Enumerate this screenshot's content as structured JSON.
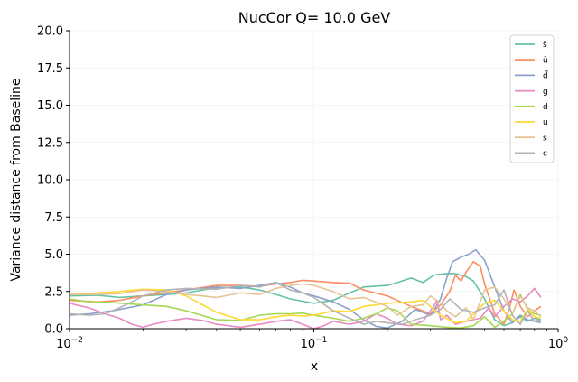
{
  "chart_data": {
    "type": "line",
    "title": "NucCor Q= 10.0 GeV",
    "xlabel": "x",
    "ylabel": "Variance distance from Baseline",
    "xscale": "log",
    "xlim": [
      0.01,
      1
    ],
    "ylim": [
      0,
      20
    ],
    "x_ticks": [
      {
        "value": 0.01,
        "base": "10",
        "exp": "−2"
      },
      {
        "value": 0.1,
        "base": "10",
        "exp": "−1"
      },
      {
        "value": 1,
        "base": "10",
        "exp": "0"
      }
    ],
    "y_ticks": [
      "0.0",
      "2.5",
      "5.0",
      "7.5",
      "10.0",
      "12.5",
      "15.0",
      "17.5",
      "20.0"
    ],
    "grid": true,
    "legend_position": "top-right",
    "series": [
      {
        "name": "s̄",
        "color": "#66c2a5",
        "points": [
          [
            0.01,
            2.2
          ],
          [
            0.013,
            2.25
          ],
          [
            0.016,
            2.1
          ],
          [
            0.02,
            2.2
          ],
          [
            0.025,
            2.3
          ],
          [
            0.03,
            2.4
          ],
          [
            0.035,
            2.6
          ],
          [
            0.04,
            2.75
          ],
          [
            0.05,
            2.8
          ],
          [
            0.06,
            2.6
          ],
          [
            0.07,
            2.3
          ],
          [
            0.08,
            2.0
          ],
          [
            0.1,
            1.7
          ],
          [
            0.12,
            1.9
          ],
          [
            0.14,
            2.4
          ],
          [
            0.16,
            2.8
          ],
          [
            0.2,
            2.9
          ],
          [
            0.22,
            3.1
          ],
          [
            0.25,
            3.4
          ],
          [
            0.28,
            3.1
          ],
          [
            0.31,
            3.6
          ],
          [
            0.35,
            3.7
          ],
          [
            0.38,
            3.7
          ],
          [
            0.42,
            3.5
          ],
          [
            0.45,
            3.2
          ],
          [
            0.5,
            2.0
          ],
          [
            0.55,
            0.6
          ],
          [
            0.6,
            0.2
          ],
          [
            0.65,
            0.4
          ],
          [
            0.7,
            0.8
          ],
          [
            0.75,
            0.5
          ],
          [
            0.8,
            0.7
          ],
          [
            0.85,
            0.6
          ]
        ]
      },
      {
        "name": "ū",
        "color": "#fc8d62",
        "points": [
          [
            0.01,
            1.9
          ],
          [
            0.013,
            1.8
          ],
          [
            0.016,
            1.9
          ],
          [
            0.02,
            2.2
          ],
          [
            0.03,
            2.6
          ],
          [
            0.04,
            2.9
          ],
          [
            0.05,
            2.9
          ],
          [
            0.06,
            2.85
          ],
          [
            0.07,
            3.0
          ],
          [
            0.08,
            3.1
          ],
          [
            0.09,
            3.25
          ],
          [
            0.1,
            3.2
          ],
          [
            0.12,
            3.1
          ],
          [
            0.14,
            3.05
          ],
          [
            0.16,
            2.6
          ],
          [
            0.2,
            2.2
          ],
          [
            0.25,
            1.5
          ],
          [
            0.3,
            1.0
          ],
          [
            0.33,
            1.6
          ],
          [
            0.36,
            2.5
          ],
          [
            0.38,
            3.6
          ],
          [
            0.4,
            3.2
          ],
          [
            0.42,
            3.8
          ],
          [
            0.45,
            4.5
          ],
          [
            0.48,
            4.2
          ],
          [
            0.5,
            3.0
          ],
          [
            0.55,
            1.0
          ],
          [
            0.6,
            0.3
          ],
          [
            0.63,
            1.3
          ],
          [
            0.66,
            2.6
          ],
          [
            0.7,
            1.5
          ],
          [
            0.75,
            0.8
          ],
          [
            0.8,
            1.2
          ],
          [
            0.85,
            1.5
          ]
        ]
      },
      {
        "name": "d̄",
        "color": "#8da0cb",
        "points": [
          [
            0.01,
            0.9
          ],
          [
            0.012,
            1.0
          ],
          [
            0.015,
            1.2
          ],
          [
            0.02,
            1.6
          ],
          [
            0.025,
            2.3
          ],
          [
            0.03,
            2.6
          ],
          [
            0.04,
            2.8
          ],
          [
            0.05,
            2.7
          ],
          [
            0.06,
            2.9
          ],
          [
            0.07,
            3.1
          ],
          [
            0.08,
            2.8
          ],
          [
            0.09,
            2.4
          ],
          [
            0.1,
            2.2
          ],
          [
            0.12,
            1.8
          ],
          [
            0.14,
            1.3
          ],
          [
            0.16,
            0.6
          ],
          [
            0.18,
            0.15
          ],
          [
            0.2,
            0.05
          ],
          [
            0.23,
            0.5
          ],
          [
            0.26,
            1.3
          ],
          [
            0.3,
            0.9
          ],
          [
            0.33,
            2.0
          ],
          [
            0.35,
            3.4
          ],
          [
            0.37,
            4.5
          ],
          [
            0.4,
            4.8
          ],
          [
            0.43,
            5.0
          ],
          [
            0.46,
            5.3
          ],
          [
            0.5,
            4.6
          ],
          [
            0.55,
            2.8
          ],
          [
            0.6,
            1.2
          ],
          [
            0.65,
            0.4
          ],
          [
            0.7,
            0.9
          ],
          [
            0.75,
            0.6
          ],
          [
            0.8,
            0.5
          ],
          [
            0.85,
            0.4
          ]
        ]
      },
      {
        "name": "g",
        "color": "#e78ac3",
        "points": [
          [
            0.01,
            1.7
          ],
          [
            0.012,
            1.4
          ],
          [
            0.014,
            1.0
          ],
          [
            0.016,
            0.7
          ],
          [
            0.018,
            0.3
          ],
          [
            0.02,
            0.1
          ],
          [
            0.022,
            0.3
          ],
          [
            0.025,
            0.5
          ],
          [
            0.03,
            0.7
          ],
          [
            0.035,
            0.55
          ],
          [
            0.04,
            0.3
          ],
          [
            0.05,
            0.1
          ],
          [
            0.06,
            0.3
          ],
          [
            0.07,
            0.5
          ],
          [
            0.08,
            0.6
          ],
          [
            0.09,
            0.3
          ],
          [
            0.1,
            0.0
          ],
          [
            0.11,
            0.2
          ],
          [
            0.12,
            0.5
          ],
          [
            0.14,
            0.3
          ],
          [
            0.16,
            0.5
          ],
          [
            0.18,
            1.0
          ],
          [
            0.2,
            0.7
          ],
          [
            0.22,
            0.3
          ],
          [
            0.25,
            0.2
          ],
          [
            0.28,
            0.5
          ],
          [
            0.3,
            1.2
          ],
          [
            0.32,
            1.9
          ],
          [
            0.33,
            0.6
          ],
          [
            0.35,
            0.9
          ],
          [
            0.38,
            0.3
          ],
          [
            0.42,
            0.5
          ],
          [
            0.48,
            0.7
          ],
          [
            0.52,
            1.4
          ],
          [
            0.55,
            0.8
          ],
          [
            0.6,
            1.5
          ],
          [
            0.65,
            2.0
          ],
          [
            0.7,
            1.8
          ],
          [
            0.75,
            2.2
          ],
          [
            0.8,
            2.7
          ],
          [
            0.85,
            2.1
          ]
        ]
      },
      {
        "name": "d",
        "color": "#a6d854",
        "points": [
          [
            0.01,
            2.0
          ],
          [
            0.012,
            1.8
          ],
          [
            0.015,
            1.75
          ],
          [
            0.02,
            1.6
          ],
          [
            0.025,
            1.5
          ],
          [
            0.03,
            1.2
          ],
          [
            0.04,
            0.6
          ],
          [
            0.05,
            0.55
          ],
          [
            0.06,
            0.9
          ],
          [
            0.07,
            1.0
          ],
          [
            0.08,
            1.0
          ],
          [
            0.09,
            1.05
          ],
          [
            0.1,
            0.9
          ],
          [
            0.12,
            0.7
          ],
          [
            0.14,
            0.5
          ],
          [
            0.16,
            0.7
          ],
          [
            0.18,
            1.0
          ],
          [
            0.2,
            1.4
          ],
          [
            0.22,
            1.2
          ],
          [
            0.25,
            0.3
          ],
          [
            0.3,
            0.2
          ],
          [
            0.35,
            0.1
          ],
          [
            0.4,
            0.05
          ],
          [
            0.45,
            0.2
          ],
          [
            0.5,
            0.8
          ],
          [
            0.55,
            0.1
          ],
          [
            0.6,
            0.5
          ],
          [
            0.65,
            1.0
          ],
          [
            0.7,
            2.3
          ],
          [
            0.75,
            1.3
          ],
          [
            0.8,
            1.0
          ],
          [
            0.85,
            0.9
          ]
        ]
      },
      {
        "name": "u",
        "color": "#ffd92f",
        "points": [
          [
            0.01,
            2.3
          ],
          [
            0.013,
            2.4
          ],
          [
            0.016,
            2.5
          ],
          [
            0.02,
            2.65
          ],
          [
            0.025,
            2.6
          ],
          [
            0.03,
            2.2
          ],
          [
            0.035,
            1.6
          ],
          [
            0.04,
            1.1
          ],
          [
            0.05,
            0.6
          ],
          [
            0.06,
            0.6
          ],
          [
            0.07,
            0.8
          ],
          [
            0.08,
            0.9
          ],
          [
            0.09,
            0.85
          ],
          [
            0.1,
            0.9
          ],
          [
            0.12,
            1.2
          ],
          [
            0.14,
            1.15
          ],
          [
            0.16,
            1.5
          ],
          [
            0.2,
            1.7
          ],
          [
            0.25,
            1.8
          ],
          [
            0.28,
            1.9
          ],
          [
            0.3,
            1.5
          ],
          [
            0.33,
            0.9
          ],
          [
            0.38,
            0.4
          ],
          [
            0.42,
            0.5
          ],
          [
            0.45,
            1.0
          ],
          [
            0.5,
            1.7
          ],
          [
            0.55,
            1.9
          ],
          [
            0.6,
            1.2
          ],
          [
            0.65,
            0.6
          ],
          [
            0.7,
            0.5
          ],
          [
            0.75,
            1.3
          ],
          [
            0.8,
            0.8
          ],
          [
            0.85,
            0.7
          ]
        ]
      },
      {
        "name": "s",
        "color": "#e5c494",
        "points": [
          [
            0.01,
            2.3
          ],
          [
            0.013,
            2.3
          ],
          [
            0.016,
            2.35
          ],
          [
            0.02,
            2.6
          ],
          [
            0.025,
            2.5
          ],
          [
            0.03,
            2.3
          ],
          [
            0.035,
            2.2
          ],
          [
            0.04,
            2.1
          ],
          [
            0.05,
            2.4
          ],
          [
            0.06,
            2.3
          ],
          [
            0.07,
            2.7
          ],
          [
            0.08,
            2.9
          ],
          [
            0.09,
            3.0
          ],
          [
            0.1,
            2.9
          ],
          [
            0.12,
            2.5
          ],
          [
            0.14,
            2.0
          ],
          [
            0.16,
            2.1
          ],
          [
            0.2,
            1.5
          ],
          [
            0.22,
            0.9
          ],
          [
            0.25,
            1.5
          ],
          [
            0.28,
            1.6
          ],
          [
            0.3,
            2.2
          ],
          [
            0.33,
            1.7
          ],
          [
            0.35,
            1.2
          ],
          [
            0.38,
            0.8
          ],
          [
            0.42,
            1.4
          ],
          [
            0.45,
            0.6
          ],
          [
            0.5,
            2.6
          ],
          [
            0.55,
            2.8
          ],
          [
            0.6,
            2.0
          ],
          [
            0.65,
            1.0
          ],
          [
            0.7,
            2.2
          ],
          [
            0.75,
            1.4
          ],
          [
            0.8,
            1.2
          ],
          [
            0.85,
            0.8
          ]
        ]
      },
      {
        "name": "c",
        "color": "#b3b3b3",
        "points": [
          [
            0.01,
            1.0
          ],
          [
            0.012,
            0.9
          ],
          [
            0.014,
            1.0
          ],
          [
            0.016,
            1.4
          ],
          [
            0.018,
            1.8
          ],
          [
            0.02,
            2.2
          ],
          [
            0.025,
            2.6
          ],
          [
            0.03,
            2.7
          ],
          [
            0.04,
            2.65
          ],
          [
            0.05,
            2.9
          ],
          [
            0.06,
            2.8
          ],
          [
            0.07,
            3.1
          ],
          [
            0.08,
            2.6
          ],
          [
            0.09,
            2.4
          ],
          [
            0.1,
            2.1
          ],
          [
            0.12,
            1.2
          ],
          [
            0.14,
            0.7
          ],
          [
            0.16,
            0.3
          ],
          [
            0.18,
            0.5
          ],
          [
            0.2,
            0.4
          ],
          [
            0.23,
            0.3
          ],
          [
            0.26,
            0.6
          ],
          [
            0.3,
            0.9
          ],
          [
            0.33,
            1.3
          ],
          [
            0.36,
            2.0
          ],
          [
            0.4,
            1.3
          ],
          [
            0.45,
            1.1
          ],
          [
            0.5,
            1.4
          ],
          [
            0.55,
            1.6
          ],
          [
            0.6,
            2.6
          ],
          [
            0.65,
            0.9
          ],
          [
            0.7,
            0.3
          ],
          [
            0.75,
            1.2
          ],
          [
            0.8,
            0.5
          ],
          [
            0.85,
            0.6
          ]
        ]
      }
    ]
  }
}
